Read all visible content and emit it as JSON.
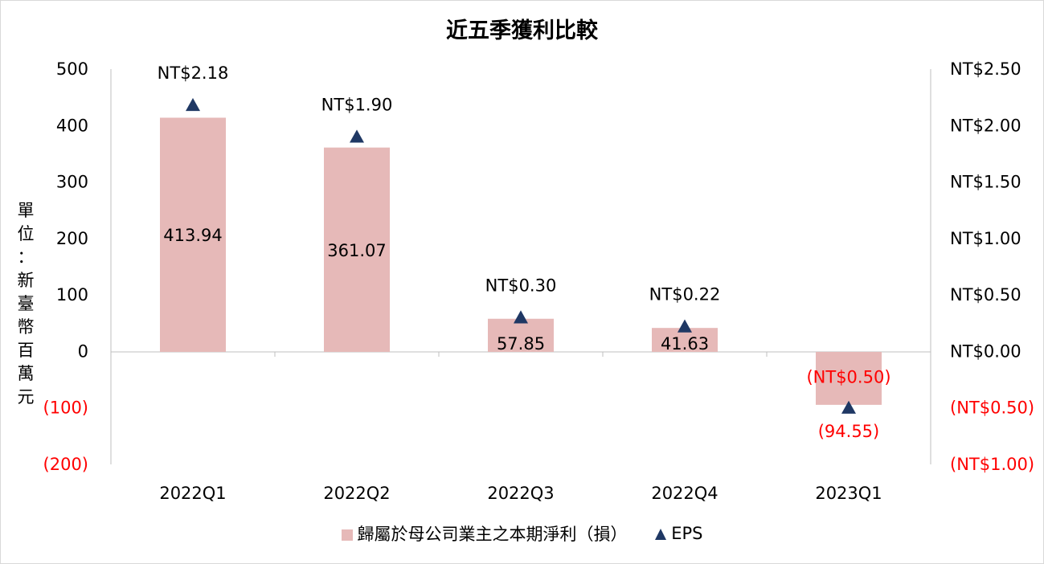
{
  "chart_data": {
    "type": "bar",
    "title": "近五季獲利比較",
    "ylabel": "單位：新臺幣百萬元",
    "categories": [
      "2022Q1",
      "2022Q2",
      "2022Q3",
      "2022Q4",
      "2023Q1"
    ],
    "ylim_left": [
      -200,
      500
    ],
    "ylim_right": [
      -1.0,
      2.5
    ],
    "left_ticks": [
      {
        "value": 500,
        "label": "500"
      },
      {
        "value": 400,
        "label": "400"
      },
      {
        "value": 300,
        "label": "300"
      },
      {
        "value": 200,
        "label": "200"
      },
      {
        "value": 100,
        "label": "100"
      },
      {
        "value": 0,
        "label": "0"
      },
      {
        "value": -100,
        "label": "(100)"
      },
      {
        "value": -200,
        "label": "(200)"
      }
    ],
    "right_ticks": [
      {
        "value": 2.5,
        "label": "NT$2.50"
      },
      {
        "value": 2.0,
        "label": "NT$2.00"
      },
      {
        "value": 1.5,
        "label": "NT$1.50"
      },
      {
        "value": 1.0,
        "label": "NT$1.00"
      },
      {
        "value": 0.5,
        "label": "NT$0.50"
      },
      {
        "value": 0.0,
        "label": "NT$0.00"
      },
      {
        "value": -0.5,
        "label": "(NT$0.50)"
      },
      {
        "value": -1.0,
        "label": "(NT$1.00)"
      }
    ],
    "series": [
      {
        "name": "歸屬於母公司業主之本期淨利（損）",
        "kind": "bar",
        "axis": "left",
        "color": "#e6b9b8",
        "values": [
          413.94,
          361.07,
          57.85,
          41.63,
          -94.55
        ],
        "labels": [
          "413.94",
          "361.07",
          "57.85",
          "41.63",
          "(94.55)"
        ]
      },
      {
        "name": "EPS",
        "kind": "marker",
        "marker": "triangle",
        "axis": "right",
        "color": "#1f3864",
        "values": [
          2.18,
          1.9,
          0.3,
          0.22,
          -0.5
        ],
        "labels": [
          "NT$2.18",
          "NT$1.90",
          "NT$0.30",
          "NT$0.22",
          "(NT$0.50)"
        ]
      }
    ],
    "negative_color": "#ff0000",
    "legend_position": "bottom",
    "grid": false
  },
  "unit_chars": [
    "單",
    "位",
    "：",
    "新",
    "臺",
    "幣",
    "百",
    "萬",
    "元"
  ]
}
